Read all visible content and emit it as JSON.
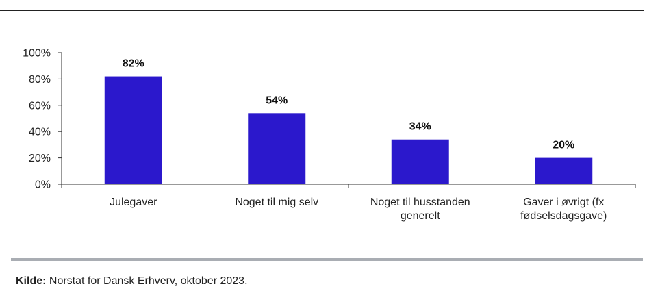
{
  "chart_data": {
    "type": "bar",
    "categories": [
      [
        "Julegaver"
      ],
      [
        "Noget til mig selv"
      ],
      [
        "Noget til husstanden",
        "generelt"
      ],
      [
        "Gaver i øvrigt (fx",
        "fødselsdagsgave)"
      ]
    ],
    "values": [
      82,
      54,
      34,
      20
    ],
    "value_labels": [
      "82%",
      "54%",
      "34%",
      "20%"
    ],
    "yticks": [
      "0%",
      "20%",
      "40%",
      "60%",
      "80%",
      "100%"
    ],
    "ylim": [
      0,
      100
    ],
    "bar_color": "#2b18cc",
    "grid": false,
    "legend": false
  },
  "source": {
    "label": "Kilde:",
    "text": " Norstat for Dansk Erhverv, oktober 2023."
  }
}
